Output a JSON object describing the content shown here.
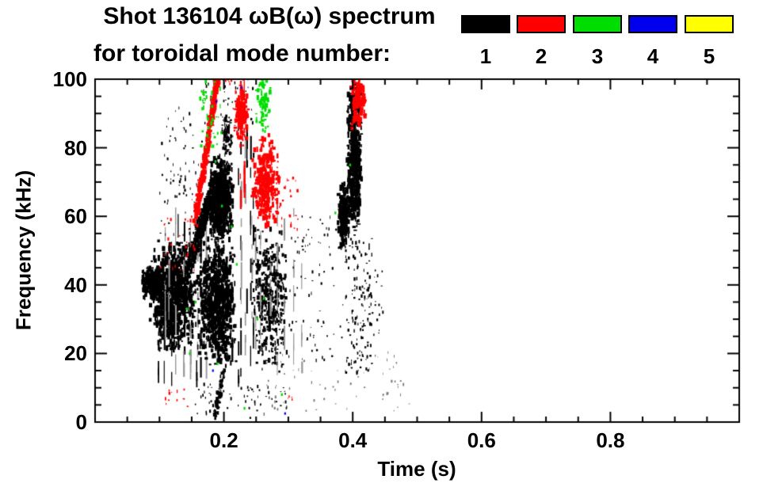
{
  "title_line1": "Shot 136104 ωB(ω) spectrum",
  "title_line2": "for toroidal mode number:",
  "legend": {
    "position": "top-right",
    "items": [
      {
        "mode": "1",
        "color": "#000000"
      },
      {
        "mode": "2",
        "color": "#ff0000"
      },
      {
        "mode": "3",
        "color": "#00dd00"
      },
      {
        "mode": "4",
        "color": "#0000ee"
      },
      {
        "mode": "5",
        "color": "#ffff00"
      }
    ]
  },
  "chart_data": {
    "type": "scatter",
    "title": "Shot 136104 ωB(ω) spectrum for toroidal mode number: 1 2 3 4 5",
    "xlabel": "Time (s)",
    "ylabel": "Frequency (kHz)",
    "xlim": [
      0,
      1.0
    ],
    "ylim": [
      0,
      100
    ],
    "grid": false,
    "xticks": {
      "major": [
        0.2,
        0.4,
        0.6,
        0.8
      ],
      "labels": [
        "0.2",
        "0.4",
        "0.6",
        "0.8"
      ],
      "minor_step": 0.05
    },
    "yticks": {
      "major": [
        0,
        20,
        40,
        60,
        80,
        100
      ],
      "labels": [
        "0",
        "20",
        "40",
        "60",
        "80",
        "100"
      ],
      "minor_step": 5
    },
    "clusters_note": "Spectrogram-style scatter; each cluster summarizes a burst of mode activity: t = time range (s), f = frequency range (kHz), n = approx point count.",
    "series": [
      {
        "name": "mode 1",
        "color": "#000000",
        "clusters": [
          {
            "shape": "blob",
            "t": [
              0.072,
              0.108
            ],
            "f": [
              36,
              46
            ],
            "n": 280,
            "size": 3
          },
          {
            "shape": "blob",
            "t": [
              0.085,
              0.16
            ],
            "f": [
              20,
              54
            ],
            "n": 900,
            "size": 3
          },
          {
            "shape": "vlines",
            "t": [
              0.095,
              0.17
            ],
            "f": [
              10,
              56
            ],
            "lines": 8,
            "size": 2
          },
          {
            "shape": "vlines",
            "t": [
              0.1,
              0.175
            ],
            "f": [
              12,
              58
            ],
            "lines": 7,
            "size": 2,
            "color": "#999999"
          },
          {
            "shape": "diag",
            "from": [
              0.146,
              46
            ],
            "to": [
              0.186,
              70
            ],
            "width_khz": 7,
            "n": 330,
            "size": 3
          },
          {
            "shape": "blob",
            "t": [
              0.175,
              0.215
            ],
            "f": [
              52,
              78
            ],
            "n": 650,
            "size": 3
          },
          {
            "shape": "blob",
            "t": [
              0.158,
              0.22
            ],
            "f": [
              16,
              54
            ],
            "n": 800,
            "size": 3
          },
          {
            "shape": "blob",
            "t": [
              0.196,
              0.215
            ],
            "f": [
              76,
              90
            ],
            "n": 90,
            "size": 2
          },
          {
            "shape": "vlines",
            "t": [
              0.21,
              0.25
            ],
            "f": [
              8,
              86
            ],
            "lines": 6,
            "size": 2
          },
          {
            "shape": "vlines",
            "t": [
              0.22,
              0.255
            ],
            "f": [
              10,
              80
            ],
            "lines": 4,
            "size": 2,
            "color": "#999999"
          },
          {
            "shape": "blob",
            "t": [
              0.243,
              0.3
            ],
            "f": [
              14,
              58
            ],
            "n": 420,
            "size": 2.5
          },
          {
            "shape": "vlines",
            "t": [
              0.25,
              0.33
            ],
            "f": [
              12,
              60
            ],
            "lines": 6,
            "size": 2,
            "color": "#999999"
          },
          {
            "shape": "diag",
            "from": [
              0.186,
              2
            ],
            "to": [
              0.199,
              14
            ],
            "width_khz": 3,
            "n": 80,
            "size": 2.5
          },
          {
            "shape": "speckle",
            "t": [
              0.155,
              0.3
            ],
            "f": [
              1,
              11
            ],
            "n": 70,
            "size": 2
          },
          {
            "shape": "speckle",
            "t": [
              0.26,
              0.47
            ],
            "f": [
              3,
              22
            ],
            "n": 55,
            "size": 1.8,
            "color": "#777777"
          },
          {
            "shape": "blob",
            "t": [
              0.391,
              0.414
            ],
            "f": [
              54,
              101
            ],
            "n": 520,
            "size": 3
          },
          {
            "shape": "blob",
            "t": [
              0.377,
              0.394
            ],
            "f": [
              50,
              70
            ],
            "n": 170,
            "size": 3
          },
          {
            "shape": "speckle",
            "t": [
              0.388,
              0.43
            ],
            "f": [
              14,
              54
            ],
            "n": 130,
            "size": 2.2
          },
          {
            "shape": "speckle",
            "t": [
              0.1,
              0.168
            ],
            "f": [
              54,
              92
            ],
            "n": 80,
            "size": 2
          },
          {
            "shape": "speckle",
            "t": [
              0.168,
              0.245
            ],
            "f": [
              86,
              103
            ],
            "n": 55,
            "size": 2
          },
          {
            "shape": "speckle",
            "t": [
              0.3,
              0.385
            ],
            "f": [
              16,
              60
            ],
            "n": 80,
            "size": 2
          },
          {
            "shape": "speckle",
            "t": [
              0.415,
              0.45
            ],
            "f": [
              22,
              48
            ],
            "n": 30,
            "size": 2
          },
          {
            "shape": "speckle",
            "t": [
              0.445,
              0.49
            ],
            "f": [
              3,
              12
            ],
            "n": 12,
            "size": 1.8,
            "color": "#777777"
          }
        ]
      },
      {
        "name": "mode 2",
        "color": "#ff0000",
        "clusters": [
          {
            "shape": "diag",
            "from": [
              0.156,
              59
            ],
            "to": [
              0.193,
              104
            ],
            "width_khz": 5,
            "n": 400,
            "size": 3
          },
          {
            "shape": "blob",
            "t": [
              0.214,
              0.238
            ],
            "f": [
              80,
              99
            ],
            "n": 150,
            "size": 3
          },
          {
            "shape": "vlines",
            "t": [
              0.224,
              0.233
            ],
            "f": [
              60,
              100
            ],
            "lines": 2,
            "size": 2
          },
          {
            "shape": "blob",
            "t": [
              0.242,
              0.288
            ],
            "f": [
              56,
              84
            ],
            "n": 300,
            "size": 3
          },
          {
            "shape": "blob",
            "t": [
              0.397,
              0.421
            ],
            "f": [
              85,
              104
            ],
            "n": 150,
            "size": 3
          },
          {
            "shape": "speckle",
            "t": [
              0.098,
              0.158
            ],
            "f": [
              44,
              60
            ],
            "n": 28,
            "size": 2.2
          },
          {
            "shape": "speckle",
            "t": [
              0.185,
              0.215
            ],
            "f": [
              97,
              104
            ],
            "n": 18,
            "size": 2.2
          },
          {
            "shape": "speckle",
            "t": [
              0.28,
              0.315
            ],
            "f": [
              52,
              72
            ],
            "n": 25,
            "size": 2.2
          },
          {
            "shape": "speckle",
            "t": [
              0.108,
              0.148
            ],
            "f": [
              4,
              10
            ],
            "n": 12,
            "size": 2
          },
          {
            "shape": "speckle",
            "t": [
              0.29,
              0.31
            ],
            "f": [
              4,
              8
            ],
            "n": 4,
            "size": 1.8
          }
        ]
      },
      {
        "name": "mode 3",
        "color": "#00dd00",
        "clusters": [
          {
            "shape": "speckle",
            "t": [
              0.163,
              0.196
            ],
            "f": [
              80,
              104
            ],
            "n": 55,
            "size": 2.6
          },
          {
            "shape": "blob",
            "t": [
              0.247,
              0.274
            ],
            "f": [
              84,
              102
            ],
            "n": 70,
            "size": 2.6
          },
          {
            "shape": "points",
            "size": 2.4,
            "pts": [
              [
                0.187,
                76
              ],
              [
                0.197,
                63
              ],
              [
                0.212,
                57
              ],
              [
                0.262,
                36
              ],
              [
                0.156,
                35
              ],
              [
                0.143,
                33
              ],
              [
                0.252,
                30
              ],
              [
                0.19,
                17
              ],
              [
                0.232,
                4
              ],
              [
                0.29,
                8
              ],
              [
                0.373,
                61
              ],
              [
                0.396,
                75
              ],
              [
                0.147,
                20
              ],
              [
                0.22,
                46
              ]
            ]
          }
        ]
      },
      {
        "name": "mode 4",
        "color": "#0000ee",
        "clusters": [
          {
            "shape": "points",
            "size": 2.2,
            "pts": [
              [
                0.188,
                93.5
              ],
              [
                0.183,
                15
              ],
              [
                0.227,
                97.5
              ],
              [
                0.295,
                2.5
              ]
            ]
          }
        ]
      },
      {
        "name": "mode 5",
        "color": "#ffff00",
        "clusters": []
      }
    ]
  }
}
